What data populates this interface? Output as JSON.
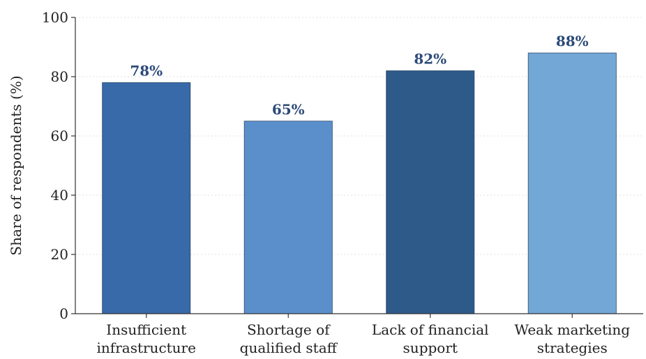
{
  "chart_data": {
    "type": "bar",
    "categories": [
      [
        "Insufficient",
        "infrastructure"
      ],
      [
        "Shortage of",
        "qualified staff"
      ],
      [
        "Lack of financial",
        "support"
      ],
      [
        "Weak marketing",
        "strategies"
      ]
    ],
    "values": [
      78,
      65,
      82,
      88
    ],
    "data_labels": [
      "78%",
      "65%",
      "82%",
      "88%"
    ],
    "colors": [
      "#3869a8",
      "#5b8fcb",
      "#2e5a8a",
      "#72a7d6"
    ],
    "ylabel": "Share of respondents (%)",
    "xlabel": "",
    "ylim": [
      0,
      100
    ],
    "yticks": [
      0,
      20,
      40,
      60,
      80,
      100
    ],
    "grid": "y-dotted"
  }
}
